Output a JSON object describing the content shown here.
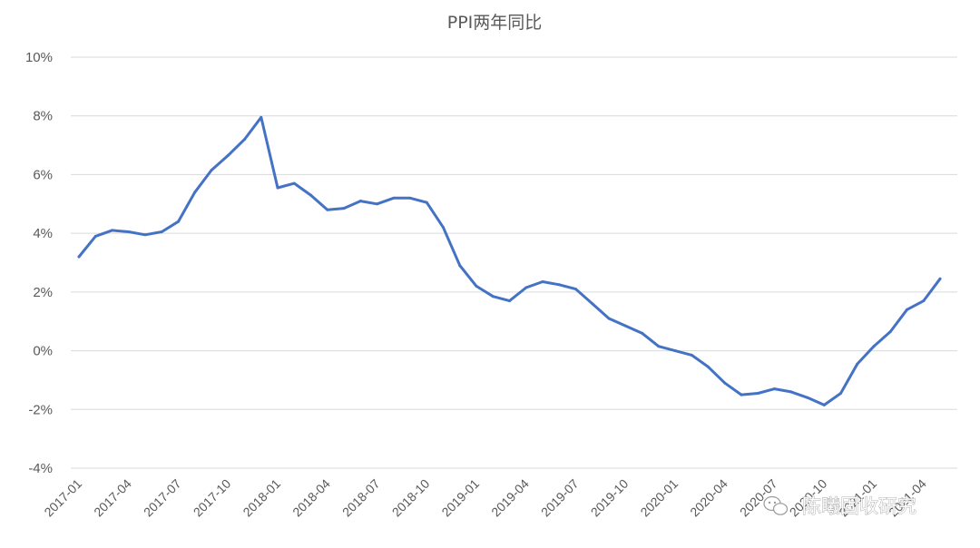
{
  "chart_data": {
    "type": "line",
    "title": "PPI两年同比",
    "xlabel": "",
    "ylabel": "",
    "ylim": [
      -4,
      10
    ],
    "yticks": [
      "-4%",
      "-2%",
      "0%",
      "2%",
      "4%",
      "6%",
      "8%",
      "10%"
    ],
    "ytick_values": [
      -4,
      -2,
      0,
      2,
      4,
      6,
      8,
      10
    ],
    "xtick_labels": [
      "2017-01",
      "2017-04",
      "2017-07",
      "2017-10",
      "2018-01",
      "2018-04",
      "2018-07",
      "2018-10",
      "2019-01",
      "2019-04",
      "2019-07",
      "2019-10",
      "2020-01",
      "2020-04",
      "2020-07",
      "2020-10",
      "2021-01",
      "2021-04"
    ],
    "grid": true,
    "legend": "none",
    "color": "#4472c4",
    "x": [
      "2017-01",
      "2017-02",
      "2017-03",
      "2017-04",
      "2017-05",
      "2017-06",
      "2017-07",
      "2017-08",
      "2017-09",
      "2017-10",
      "2017-11",
      "2017-12",
      "2018-01",
      "2018-02",
      "2018-03",
      "2018-04",
      "2018-05",
      "2018-06",
      "2018-07",
      "2018-08",
      "2018-09",
      "2018-10",
      "2018-11",
      "2018-12",
      "2019-01",
      "2019-02",
      "2019-03",
      "2019-04",
      "2019-05",
      "2019-06",
      "2019-07",
      "2019-08",
      "2019-09",
      "2019-10",
      "2019-11",
      "2019-12",
      "2020-01",
      "2020-02",
      "2020-03",
      "2020-04",
      "2020-05",
      "2020-06",
      "2020-07",
      "2020-08",
      "2020-09",
      "2020-10",
      "2020-11",
      "2020-12",
      "2021-01",
      "2021-02",
      "2021-03",
      "2021-04",
      "2021-05"
    ],
    "series": [
      {
        "values": [
          3.2,
          3.9,
          4.1,
          4.05,
          3.95,
          4.05,
          4.4,
          5.4,
          6.15,
          6.65,
          7.2,
          7.95,
          5.55,
          5.7,
          5.3,
          4.8,
          4.85,
          5.1,
          5.0,
          5.2,
          5.2,
          5.05,
          4.2,
          2.9,
          2.2,
          1.85,
          1.7,
          2.15,
          2.35,
          2.25,
          2.1,
          1.6,
          1.1,
          0.85,
          0.6,
          0.15,
          0.0,
          -0.15,
          -0.55,
          -1.1,
          -1.5,
          -1.45,
          -1.3,
          -1.4,
          -1.6,
          -1.85,
          -1.45,
          -0.45,
          0.15,
          0.65,
          1.4,
          1.7,
          2.45
        ]
      }
    ]
  },
  "watermark": {
    "text": "陈曦固收研究",
    "icon": "wechat-icon"
  }
}
